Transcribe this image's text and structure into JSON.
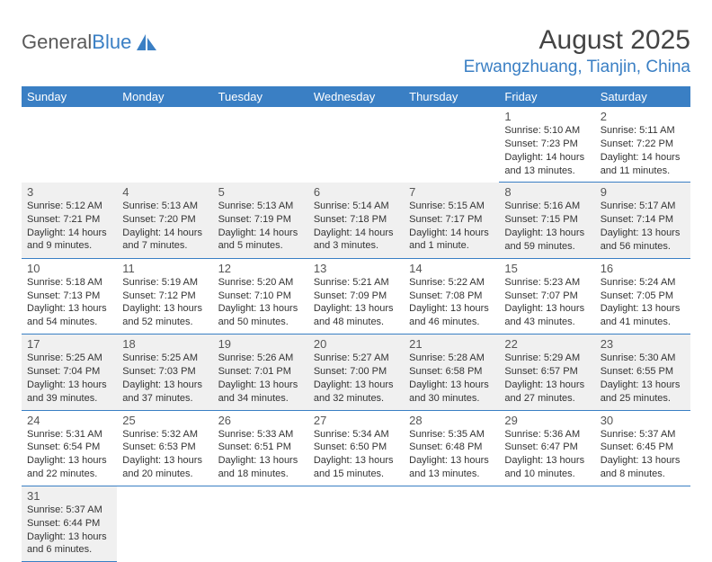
{
  "logo": {
    "text1": "General",
    "text2": "Blue"
  },
  "title": "August 2025",
  "location": "Erwangzhuang, Tianjin, China",
  "colors": {
    "header_bg": "#3a7fc4",
    "header_text": "#ffffff",
    "alt_row_bg": "#f0f0f0",
    "border": "#3a7fc4",
    "logo_gray": "#5a5a5a",
    "logo_blue": "#3a7fc4"
  },
  "day_names": [
    "Sunday",
    "Monday",
    "Tuesday",
    "Wednesday",
    "Thursday",
    "Friday",
    "Saturday"
  ],
  "days": {
    "1": {
      "rise": "5:10 AM",
      "set": "7:23 PM",
      "dl": "14 hours and 13 minutes."
    },
    "2": {
      "rise": "5:11 AM",
      "set": "7:22 PM",
      "dl": "14 hours and 11 minutes."
    },
    "3": {
      "rise": "5:12 AM",
      "set": "7:21 PM",
      "dl": "14 hours and 9 minutes."
    },
    "4": {
      "rise": "5:13 AM",
      "set": "7:20 PM",
      "dl": "14 hours and 7 minutes."
    },
    "5": {
      "rise": "5:13 AM",
      "set": "7:19 PM",
      "dl": "14 hours and 5 minutes."
    },
    "6": {
      "rise": "5:14 AM",
      "set": "7:18 PM",
      "dl": "14 hours and 3 minutes."
    },
    "7": {
      "rise": "5:15 AM",
      "set": "7:17 PM",
      "dl": "14 hours and 1 minute."
    },
    "8": {
      "rise": "5:16 AM",
      "set": "7:15 PM",
      "dl": "13 hours and 59 minutes."
    },
    "9": {
      "rise": "5:17 AM",
      "set": "7:14 PM",
      "dl": "13 hours and 56 minutes."
    },
    "10": {
      "rise": "5:18 AM",
      "set": "7:13 PM",
      "dl": "13 hours and 54 minutes."
    },
    "11": {
      "rise": "5:19 AM",
      "set": "7:12 PM",
      "dl": "13 hours and 52 minutes."
    },
    "12": {
      "rise": "5:20 AM",
      "set": "7:10 PM",
      "dl": "13 hours and 50 minutes."
    },
    "13": {
      "rise": "5:21 AM",
      "set": "7:09 PM",
      "dl": "13 hours and 48 minutes."
    },
    "14": {
      "rise": "5:22 AM",
      "set": "7:08 PM",
      "dl": "13 hours and 46 minutes."
    },
    "15": {
      "rise": "5:23 AM",
      "set": "7:07 PM",
      "dl": "13 hours and 43 minutes."
    },
    "16": {
      "rise": "5:24 AM",
      "set": "7:05 PM",
      "dl": "13 hours and 41 minutes."
    },
    "17": {
      "rise": "5:25 AM",
      "set": "7:04 PM",
      "dl": "13 hours and 39 minutes."
    },
    "18": {
      "rise": "5:25 AM",
      "set": "7:03 PM",
      "dl": "13 hours and 37 minutes."
    },
    "19": {
      "rise": "5:26 AM",
      "set": "7:01 PM",
      "dl": "13 hours and 34 minutes."
    },
    "20": {
      "rise": "5:27 AM",
      "set": "7:00 PM",
      "dl": "13 hours and 32 minutes."
    },
    "21": {
      "rise": "5:28 AM",
      "set": "6:58 PM",
      "dl": "13 hours and 30 minutes."
    },
    "22": {
      "rise": "5:29 AM",
      "set": "6:57 PM",
      "dl": "13 hours and 27 minutes."
    },
    "23": {
      "rise": "5:30 AM",
      "set": "6:55 PM",
      "dl": "13 hours and 25 minutes."
    },
    "24": {
      "rise": "5:31 AM",
      "set": "6:54 PM",
      "dl": "13 hours and 22 minutes."
    },
    "25": {
      "rise": "5:32 AM",
      "set": "6:53 PM",
      "dl": "13 hours and 20 minutes."
    },
    "26": {
      "rise": "5:33 AM",
      "set": "6:51 PM",
      "dl": "13 hours and 18 minutes."
    },
    "27": {
      "rise": "5:34 AM",
      "set": "6:50 PM",
      "dl": "13 hours and 15 minutes."
    },
    "28": {
      "rise": "5:35 AM",
      "set": "6:48 PM",
      "dl": "13 hours and 13 minutes."
    },
    "29": {
      "rise": "5:36 AM",
      "set": "6:47 PM",
      "dl": "13 hours and 10 minutes."
    },
    "30": {
      "rise": "5:37 AM",
      "set": "6:45 PM",
      "dl": "13 hours and 8 minutes."
    },
    "31": {
      "rise": "5:37 AM",
      "set": "6:44 PM",
      "dl": "13 hours and 6 minutes."
    }
  },
  "grid": [
    {
      "alt": false,
      "cells": [
        null,
        null,
        null,
        null,
        null,
        "1",
        "2"
      ]
    },
    {
      "alt": true,
      "cells": [
        "3",
        "4",
        "5",
        "6",
        "7",
        "8",
        "9"
      ]
    },
    {
      "alt": false,
      "cells": [
        "10",
        "11",
        "12",
        "13",
        "14",
        "15",
        "16"
      ]
    },
    {
      "alt": true,
      "cells": [
        "17",
        "18",
        "19",
        "20",
        "21",
        "22",
        "23"
      ]
    },
    {
      "alt": false,
      "cells": [
        "24",
        "25",
        "26",
        "27",
        "28",
        "29",
        "30"
      ]
    },
    {
      "alt": true,
      "cells": [
        "31",
        null,
        null,
        null,
        null,
        null,
        null
      ]
    }
  ],
  "labels": {
    "sunrise": "Sunrise: ",
    "sunset": "Sunset: ",
    "daylight": "Daylight: "
  }
}
